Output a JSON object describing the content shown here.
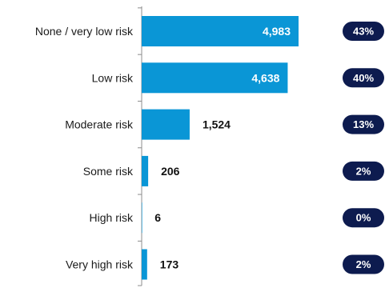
{
  "chart_data": {
    "type": "bar",
    "orientation": "horizontal",
    "categories": [
      "None / very low risk",
      "Low risk",
      "Moderate risk",
      "Some risk",
      "High risk",
      "Very high risk"
    ],
    "values": [
      4983,
      4638,
      1524,
      206,
      6,
      173
    ],
    "value_labels": [
      "4,983",
      "4,638",
      "1,524",
      "206",
      "6",
      "173"
    ],
    "percent_labels": [
      "43%",
      "40%",
      "13%",
      "2%",
      "0%",
      "2%"
    ],
    "xlim": [
      0,
      4983
    ],
    "grid": false,
    "legend": "none"
  },
  "colors": {
    "bar": "#0a96d6",
    "badge": "#0d1b4f",
    "axis": "#8c8c8c",
    "label_inside": "#ffffff",
    "label_outside": "#111111"
  }
}
